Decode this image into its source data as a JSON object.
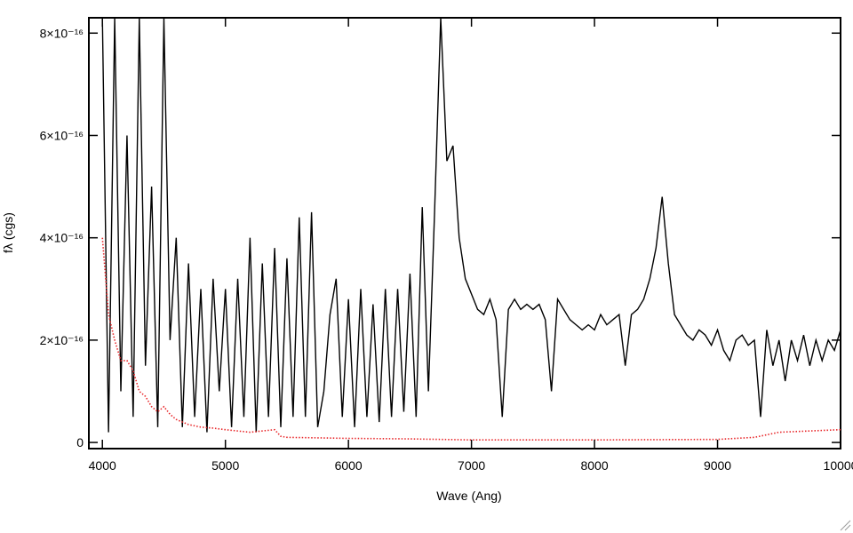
{
  "chart_data": {
    "type": "line",
    "x_label": "Wave (Ang)",
    "y_label": "fλ (cgs)",
    "xlim": [
      3890,
      10000
    ],
    "ylim": [
      -1.2e-17,
      8.3e-16
    ],
    "xticks": [
      4000,
      5000,
      6000,
      7000,
      8000,
      9000,
      10000
    ],
    "yticks": [
      0,
      {
        "value": 2e-16,
        "label": "2×10⁻¹⁶"
      },
      {
        "value": 4e-16,
        "label": "4×10⁻¹⁶"
      },
      {
        "value": 6e-16,
        "label": "6×10⁻¹⁶"
      },
      {
        "value": 8e-16,
        "label": "8×10⁻¹⁶"
      }
    ],
    "series": [
      {
        "color": "#000000",
        "style": "solid",
        "x": [
          4000,
          4050,
          4100,
          4150,
          4200,
          4250,
          4300,
          4350,
          4400,
          4450,
          4500,
          4550,
          4600,
          4650,
          4700,
          4750,
          4800,
          4850,
          4900,
          4950,
          5000,
          5050,
          5100,
          5150,
          5200,
          5250,
          5300,
          5350,
          5400,
          5450,
          5500,
          5550,
          5600,
          5650,
          5700,
          5750,
          5800,
          5850,
          5900,
          5950,
          6000,
          6050,
          6100,
          6150,
          6200,
          6250,
          6300,
          6350,
          6400,
          6450,
          6500,
          6550,
          6600,
          6650,
          6700,
          6750,
          6800,
          6850,
          6900,
          6950,
          7000,
          7050,
          7100,
          7150,
          7200,
          7250,
          7300,
          7350,
          7400,
          7450,
          7500,
          7550,
          7600,
          7650,
          7700,
          7750,
          7800,
          7850,
          7900,
          7950,
          8000,
          8050,
          8100,
          8150,
          8200,
          8250,
          8300,
          8350,
          8400,
          8450,
          8500,
          8550,
          8600,
          8650,
          8700,
          8750,
          8800,
          8850,
          8900,
          8950,
          9000,
          9050,
          9100,
          9150,
          9200,
          9250,
          9300,
          9350,
          9400,
          9450,
          9500,
          9550,
          9600,
          9650,
          9700,
          9750,
          9800,
          9850,
          9900,
          9950,
          10000
        ],
        "values": [
          8.3e-16,
          2e-17,
          8.3e-16,
          1e-16,
          6e-16,
          5e-17,
          8.3e-16,
          1.5e-16,
          5e-16,
          3e-17,
          8.3e-16,
          2e-16,
          4e-16,
          3e-17,
          3.5e-16,
          5e-17,
          3e-16,
          2e-17,
          3.2e-16,
          1e-16,
          3e-16,
          3e-17,
          3.2e-16,
          5e-17,
          4e-16,
          2e-17,
          3.5e-16,
          5e-17,
          3.8e-16,
          3e-17,
          3.6e-16,
          5e-17,
          4.4e-16,
          5e-17,
          4.5e-16,
          3e-17,
          1e-16,
          2.5e-16,
          3.2e-16,
          5e-17,
          2.8e-16,
          3e-17,
          3e-16,
          5e-17,
          2.7e-16,
          4e-17,
          3e-16,
          5e-17,
          3e-16,
          6e-17,
          3.3e-16,
          5e-17,
          4.6e-16,
          1e-16,
          4.5e-16,
          8.3e-16,
          5.5e-16,
          5.8e-16,
          4e-16,
          3.2e-16,
          2.9e-16,
          2.6e-16,
          2.5e-16,
          2.8e-16,
          2.4e-16,
          5e-17,
          2.6e-16,
          2.8e-16,
          2.6e-16,
          2.7e-16,
          2.6e-16,
          2.7e-16,
          2.4e-16,
          1e-16,
          2.8e-16,
          2.6e-16,
          2.4e-16,
          2.3e-16,
          2.2e-16,
          2.3e-16,
          2.2e-16,
          2.5e-16,
          2.3e-16,
          2.4e-16,
          2.5e-16,
          1.5e-16,
          2.5e-16,
          2.6e-16,
          2.8e-16,
          3.2e-16,
          3.8e-16,
          4.8e-16,
          3.5e-16,
          2.5e-16,
          2.3e-16,
          2.1e-16,
          2e-16,
          2.2e-16,
          2.1e-16,
          1.9e-16,
          2.2e-16,
          1.8e-16,
          1.6e-16,
          2e-16,
          2.1e-16,
          1.9e-16,
          2e-16,
          5e-17,
          2.2e-16,
          1.5e-16,
          2e-16,
          1.2e-16,
          2e-16,
          1.6e-16,
          2.1e-16,
          1.5e-16,
          2e-16,
          1.6e-16,
          2e-16,
          1.8e-16,
          2.2e-16
        ]
      },
      {
        "color": "#e8272a",
        "style": "dotted",
        "x": [
          4000,
          4050,
          4100,
          4150,
          4200,
          4250,
          4300,
          4350,
          4400,
          4450,
          4500,
          4550,
          4600,
          4700,
          4800,
          4900,
          5000,
          5200,
          5400,
          5450,
          5500,
          6000,
          6500,
          7000,
          8000,
          9000,
          9300,
          9500,
          10000
        ],
        "values": [
          4e-16,
          2.5e-16,
          2e-16,
          1.6e-16,
          1.6e-16,
          1.4e-16,
          1e-16,
          9e-17,
          7e-17,
          6e-17,
          7e-17,
          5.5e-17,
          4.5e-17,
          3.5e-17,
          3e-17,
          2.8e-17,
          2.5e-17,
          2e-17,
          2.5e-17,
          1.2e-17,
          1e-17,
          8e-18,
          7e-18,
          5e-18,
          5e-18,
          6e-18,
          1e-17,
          2e-17,
          2.5e-17
        ]
      }
    ]
  }
}
